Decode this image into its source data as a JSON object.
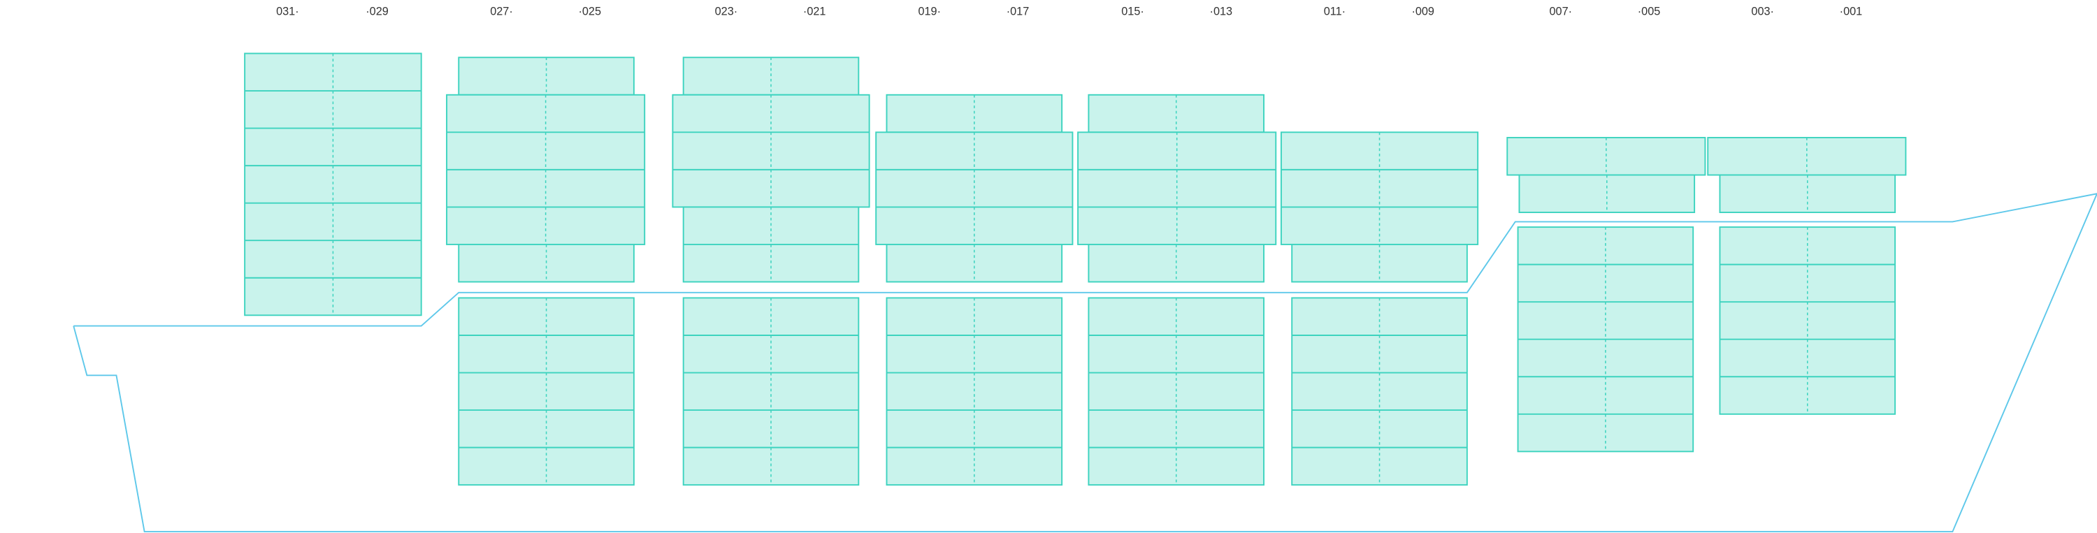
{
  "bays": [
    {
      "left": "031·",
      "right": "·029"
    },
    {
      "left": "027·",
      "right": "·025"
    },
    {
      "left": "023·",
      "right": "·021"
    },
    {
      "left": "019·",
      "right": "·017"
    },
    {
      "left": "015·",
      "right": "·013"
    },
    {
      "left": "011·",
      "right": "·009"
    },
    {
      "left": "007·",
      "right": "·005"
    },
    {
      "left": "003·",
      "right": "·001"
    }
  ]
}
